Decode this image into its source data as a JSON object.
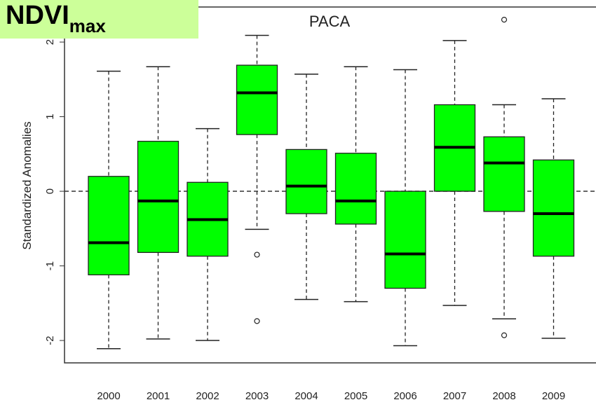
{
  "chart_data": {
    "type": "box",
    "title": "PACA",
    "badge": "NDVI",
    "badge_sub": "max",
    "y_label": "Standardized Anomalies",
    "categories": [
      "2000",
      "2001",
      "2002",
      "2003",
      "2004",
      "2005",
      "2006",
      "2007",
      "2008",
      "2009"
    ],
    "boxes": [
      {
        "low": -2.11,
        "q1": -1.12,
        "median": -0.69,
        "q3": 0.2,
        "high": 1.61,
        "outliers": []
      },
      {
        "low": -1.98,
        "q1": -0.82,
        "median": -0.13,
        "q3": 0.67,
        "high": 1.67,
        "outliers": []
      },
      {
        "low": -2.0,
        "q1": -0.87,
        "median": -0.38,
        "q3": 0.12,
        "high": 0.84,
        "outliers": []
      },
      {
        "low": -0.51,
        "q1": 0.76,
        "median": 1.32,
        "q3": 1.69,
        "high": 2.09,
        "outliers": [
          -0.85,
          -1.74
        ]
      },
      {
        "low": -1.45,
        "q1": -0.3,
        "median": 0.07,
        "q3": 0.56,
        "high": 1.57,
        "outliers": []
      },
      {
        "low": -1.48,
        "q1": -0.44,
        "median": -0.13,
        "q3": 0.51,
        "high": 1.67,
        "outliers": []
      },
      {
        "low": -2.07,
        "q1": -1.3,
        "median": -0.84,
        "q3": 0,
        "high": 1.63,
        "outliers": []
      },
      {
        "low": -1.53,
        "q1": 0,
        "median": 0.59,
        "q3": 1.16,
        "high": 2.02,
        "outliers": []
      },
      {
        "low": -1.71,
        "q1": -0.27,
        "median": 0.38,
        "q3": 0.73,
        "high": 1.16,
        "outliers": [
          2.3,
          -1.93
        ]
      },
      {
        "low": -1.97,
        "q1": -0.87,
        "median": -0.3,
        "q3": 0.42,
        "high": 1.24,
        "outliers": []
      }
    ],
    "color": "#00ff00",
    "reference_line": 0,
    "ylim": [
      -2.3,
      2.47
    ],
    "yticks": [
      -2,
      -1,
      0,
      1,
      2
    ]
  }
}
